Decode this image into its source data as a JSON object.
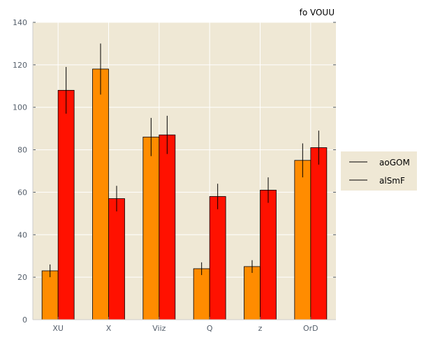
{
  "chart_data": {
    "type": "bar",
    "title": "fo VOUU",
    "xlabel": "",
    "ylabel": "",
    "ylim": [
      0,
      140
    ],
    "yticks": [
      0,
      20,
      40,
      60,
      80,
      100,
      120,
      140
    ],
    "grid": true,
    "legend_position": "right",
    "categories": [
      "XU",
      "X",
      "Viiz",
      "Q",
      "z",
      "OrD"
    ],
    "series": [
      {
        "name": "aoGOM",
        "color": "#ff8c00",
        "values": [
          23,
          118,
          86,
          24,
          25,
          75
        ],
        "errors": [
          3,
          12,
          9,
          3,
          3,
          8
        ]
      },
      {
        "name": "alSmF",
        "color": "#ff1100",
        "values": [
          108,
          57,
          87,
          58,
          61,
          81
        ],
        "errors": [
          11,
          6,
          9,
          6,
          6,
          8
        ]
      }
    ],
    "colors": {
      "plot_background": "#efe8d5",
      "legend_background": "#efe8d5",
      "grid": "#ffffff",
      "tick_text": "#555f6b"
    }
  }
}
